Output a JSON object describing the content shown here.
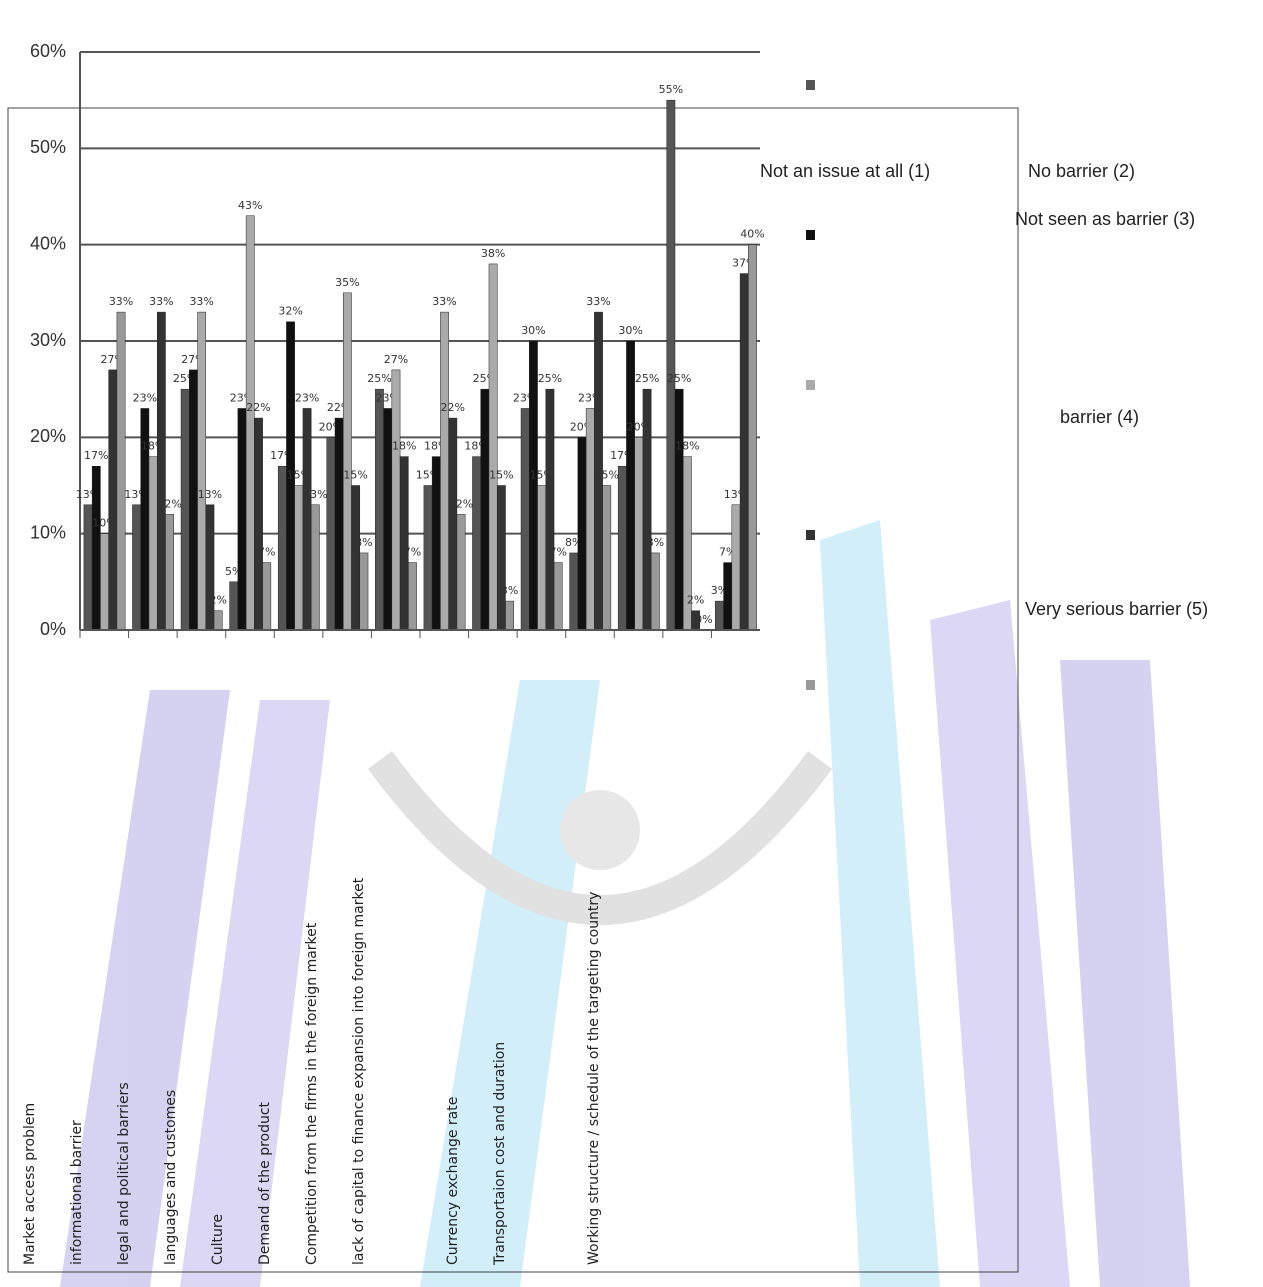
{
  "chart_data": {
    "type": "bar",
    "categories": [
      "Market access problem",
      "informational barrier",
      "legal and political barriers",
      "languages and customes",
      "Culture",
      "Demand of the product",
      "Competition from the firms in the foreign market",
      "lack of capital to finance expansion into foreign market",
      null,
      "Currency exchange rate",
      "Transportaion cost and duration",
      null,
      "Working structure / schedule of the targeting country",
      null
    ],
    "series": [
      {
        "name": "Not an issue at all (1)",
        "color": "#555555",
        "values": [
          13,
          13,
          25,
          5,
          17,
          20,
          25,
          15,
          18,
          23,
          8,
          17,
          55,
          3
        ],
        "value_labels": [
          "13%",
          "13%",
          "25%",
          "5%",
          "17%",
          "20%",
          "25%",
          "15%",
          "18%",
          "23%",
          "8%",
          "17%",
          "55%",
          "3%"
        ]
      },
      {
        "name": "No barrier (2)",
        "color": "#111111",
        "values": [
          17,
          23,
          27,
          23,
          32,
          22,
          23,
          18,
          25,
          30,
          20,
          30,
          25,
          7
        ],
        "value_labels": [
          "17%",
          "23%",
          "27%",
          "23%",
          "32%",
          "22%",
          "23%",
          "18%",
          "25%",
          "30%",
          "20%",
          "30%",
          "25%",
          "7%"
        ]
      },
      {
        "name": "Not seen as barrier (3)",
        "color": "#aaaaaa",
        "values": [
          10,
          18,
          33,
          43,
          15,
          35,
          27,
          33,
          38,
          15,
          23,
          20,
          18,
          13
        ],
        "value_labels": [
          "10%",
          "18%",
          "33%",
          "43%",
          "15%",
          "35%",
          "27%",
          "33%",
          "38%",
          "15%",
          "23%",
          "20%",
          "18%",
          "13%"
        ]
      },
      {
        "name": "barrier (4)",
        "color": "#333333",
        "values": [
          27,
          33,
          13,
          22,
          23,
          15,
          18,
          22,
          15,
          25,
          33,
          25,
          2,
          37
        ],
        "value_labels": [
          "27%",
          "33%",
          "13%",
          "22%",
          "23%",
          "15%",
          "18%",
          "22%",
          "15%",
          "25%",
          "33%",
          "25%",
          "2%",
          "37%"
        ]
      },
      {
        "name": "Very serious barrier (5)",
        "color": "#999999",
        "values": [
          33,
          12,
          2,
          7,
          13,
          8,
          7,
          12,
          3,
          7,
          15,
          8,
          0,
          40
        ],
        "value_labels": [
          "33%",
          "12%",
          "2%",
          "7%",
          "13%",
          "8%",
          "7%",
          "12%",
          "3%",
          "7%",
          "15%",
          "8%",
          "0%",
          "40%"
        ]
      }
    ],
    "ylim": [
      0,
      60
    ],
    "yticks": [
      {
        "value": 0,
        "label": "0%"
      },
      {
        "value": 10,
        "label": "10%"
      },
      {
        "value": 20,
        "label": "20%"
      },
      {
        "value": 30,
        "label": "30%"
      },
      {
        "value": 40,
        "label": "40%"
      },
      {
        "value": 50,
        "label": "50%"
      },
      {
        "value": 60,
        "label": "60%"
      }
    ],
    "grid": true
  }
}
